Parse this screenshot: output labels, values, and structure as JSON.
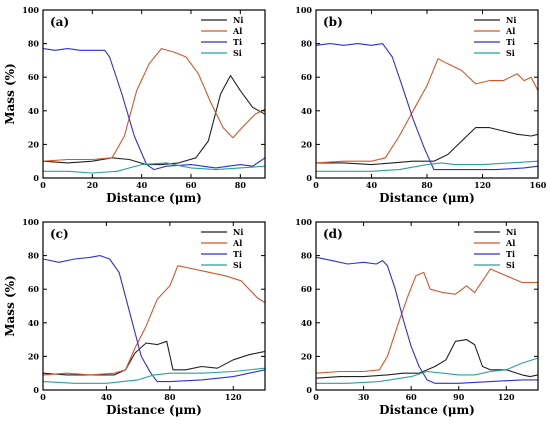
{
  "chart_data": [
    {
      "type": "line",
      "panel_label": "(a)",
      "xlabel": "Distance (μm)",
      "ylabel": "Mass (%)",
      "xlim": [
        0,
        90
      ],
      "ylim": [
        0,
        100
      ],
      "xticks": [
        0,
        20,
        40,
        60,
        80
      ],
      "yticks": [
        0,
        20,
        40,
        60,
        80,
        100
      ],
      "legend_position": "top-right",
      "series": [
        {
          "name": "Ni",
          "color": "#222222",
          "x": [
            0,
            10,
            20,
            28,
            35,
            42,
            48,
            55,
            62,
            67,
            72,
            76,
            80,
            85,
            90
          ],
          "y": [
            10,
            9,
            10,
            12,
            11,
            8,
            8,
            9,
            12,
            22,
            50,
            61,
            52,
            42,
            38
          ]
        },
        {
          "name": "Al",
          "color": "#d4572a",
          "x": [
            0,
            10,
            20,
            28,
            33,
            38,
            43,
            48,
            53,
            58,
            63,
            68,
            73,
            77,
            82,
            86,
            90
          ],
          "y": [
            10,
            11,
            11,
            12,
            25,
            52,
            68,
            77,
            75,
            72,
            62,
            45,
            30,
            24,
            32,
            38,
            41
          ]
        },
        {
          "name": "Ti",
          "color": "#2f2fd8",
          "x": [
            0,
            5,
            10,
            15,
            20,
            25,
            27,
            32,
            37,
            42,
            45,
            50,
            60,
            70,
            80,
            85,
            90
          ],
          "y": [
            77,
            76,
            77,
            76,
            76,
            76,
            72,
            50,
            25,
            8,
            5,
            7,
            8,
            6,
            8,
            7,
            12
          ]
        },
        {
          "name": "Si",
          "color": "#2aa09a",
          "x": [
            0,
            10,
            20,
            30,
            40,
            50,
            60,
            70,
            80,
            90
          ],
          "y": [
            4,
            4,
            3,
            4,
            8,
            9,
            6,
            5,
            6,
            7
          ]
        }
      ]
    },
    {
      "type": "line",
      "panel_label": "(b)",
      "xlabel": "Distance (μm)",
      "ylabel": "",
      "xlim": [
        0,
        160
      ],
      "ylim": [
        0,
        100
      ],
      "xticks": [
        0,
        40,
        80,
        120,
        160
      ],
      "yticks": [
        0,
        20,
        40,
        60,
        80,
        100
      ],
      "legend_position": "top-right",
      "series": [
        {
          "name": "Ni",
          "color": "#222222",
          "x": [
            0,
            20,
            40,
            55,
            70,
            85,
            95,
            105,
            115,
            125,
            135,
            145,
            155,
            160
          ],
          "y": [
            9,
            9,
            8,
            9,
            10,
            10,
            14,
            22,
            30,
            30,
            28,
            26,
            25,
            26
          ]
        },
        {
          "name": "Al",
          "color": "#d4572a",
          "x": [
            0,
            20,
            40,
            50,
            60,
            70,
            80,
            88,
            95,
            105,
            115,
            125,
            135,
            145,
            150,
            155,
            160
          ],
          "y": [
            9,
            10,
            10,
            12,
            25,
            40,
            55,
            71,
            68,
            64,
            56,
            58,
            58,
            62,
            58,
            60,
            52
          ]
        },
        {
          "name": "Ti",
          "color": "#2f2fd8",
          "x": [
            0,
            10,
            20,
            30,
            40,
            48,
            55,
            62,
            70,
            78,
            85,
            95,
            110,
            130,
            150,
            160
          ],
          "y": [
            79,
            80,
            79,
            80,
            79,
            80,
            72,
            55,
            35,
            18,
            5,
            5,
            5,
            5,
            6,
            7
          ]
        },
        {
          "name": "Si",
          "color": "#2aa09a",
          "x": [
            0,
            20,
            40,
            60,
            80,
            90,
            100,
            120,
            140,
            160
          ],
          "y": [
            4,
            4,
            4,
            5,
            8,
            9,
            8,
            8,
            9,
            10
          ]
        }
      ]
    },
    {
      "type": "line",
      "panel_label": "(c)",
      "xlabel": "Distance (μm)",
      "ylabel": "Mass (%)",
      "xlim": [
        0,
        140
      ],
      "ylim": [
        0,
        100
      ],
      "xticks": [
        0,
        40,
        80,
        120
      ],
      "yticks": [
        0,
        20,
        40,
        60,
        80,
        100
      ],
      "legend_position": "top-right",
      "series": [
        {
          "name": "Ni",
          "color": "#222222",
          "x": [
            0,
            15,
            30,
            45,
            52,
            58,
            65,
            72,
            78,
            82,
            90,
            100,
            110,
            120,
            130,
            140
          ],
          "y": [
            10,
            9,
            9,
            9,
            12,
            22,
            28,
            27,
            29,
            12,
            12,
            14,
            13,
            18,
            21,
            23
          ]
        },
        {
          "name": "Al",
          "color": "#d4572a",
          "x": [
            0,
            15,
            30,
            45,
            52,
            58,
            65,
            72,
            80,
            85,
            95,
            105,
            115,
            125,
            130,
            135,
            140
          ],
          "y": [
            9,
            10,
            9,
            10,
            12,
            25,
            38,
            54,
            62,
            74,
            72,
            70,
            68,
            65,
            60,
            55,
            52
          ]
        },
        {
          "name": "Ti",
          "color": "#2f2fd8",
          "x": [
            0,
            10,
            20,
            30,
            36,
            42,
            48,
            55,
            62,
            68,
            72,
            80,
            100,
            120,
            140
          ],
          "y": [
            78,
            76,
            78,
            79,
            80,
            78,
            70,
            45,
            20,
            10,
            5,
            5,
            6,
            8,
            12
          ]
        },
        {
          "name": "Si",
          "color": "#2aa09a",
          "x": [
            0,
            20,
            40,
            60,
            70,
            80,
            100,
            120,
            140
          ],
          "y": [
            5,
            4,
            4,
            6,
            9,
            10,
            10,
            11,
            13
          ]
        }
      ]
    },
    {
      "type": "line",
      "panel_label": "(d)",
      "xlabel": "Distance (μm)",
      "ylabel": "",
      "xlim": [
        0,
        140
      ],
      "ylim": [
        0,
        100
      ],
      "xticks": [
        0,
        30,
        60,
        90,
        120
      ],
      "yticks": [
        0,
        20,
        40,
        60,
        80,
        100
      ],
      "legend_position": "top-right",
      "series": [
        {
          "name": "Ni",
          "color": "#222222",
          "x": [
            0,
            15,
            30,
            45,
            55,
            65,
            75,
            82,
            88,
            95,
            100,
            105,
            110,
            120,
            130,
            135,
            140
          ],
          "y": [
            7,
            8,
            8,
            9,
            10,
            10,
            14,
            18,
            29,
            30,
            27,
            14,
            12,
            12,
            9,
            8,
            9
          ]
        },
        {
          "name": "Al",
          "color": "#d4572a",
          "x": [
            0,
            15,
            30,
            40,
            45,
            52,
            58,
            63,
            68,
            72,
            80,
            88,
            95,
            100,
            105,
            110,
            120,
            130,
            140
          ],
          "y": [
            10,
            11,
            11,
            12,
            20,
            40,
            56,
            68,
            70,
            60,
            58,
            57,
            62,
            58,
            65,
            72,
            68,
            64,
            64
          ]
        },
        {
          "name": "Ti",
          "color": "#2f2fd8",
          "x": [
            0,
            10,
            20,
            30,
            38,
            42,
            45,
            50,
            55,
            60,
            65,
            70,
            75,
            90,
            110,
            130,
            140
          ],
          "y": [
            79,
            77,
            75,
            76,
            75,
            77,
            74,
            60,
            42,
            26,
            14,
            6,
            4,
            4,
            5,
            6,
            6
          ]
        },
        {
          "name": "Si",
          "color": "#2aa09a",
          "x": [
            0,
            20,
            40,
            60,
            70,
            80,
            90,
            100,
            110,
            120,
            130,
            140
          ],
          "y": [
            4,
            4,
            5,
            8,
            11,
            10,
            9,
            9,
            11,
            12,
            16,
            19
          ]
        }
      ]
    }
  ]
}
